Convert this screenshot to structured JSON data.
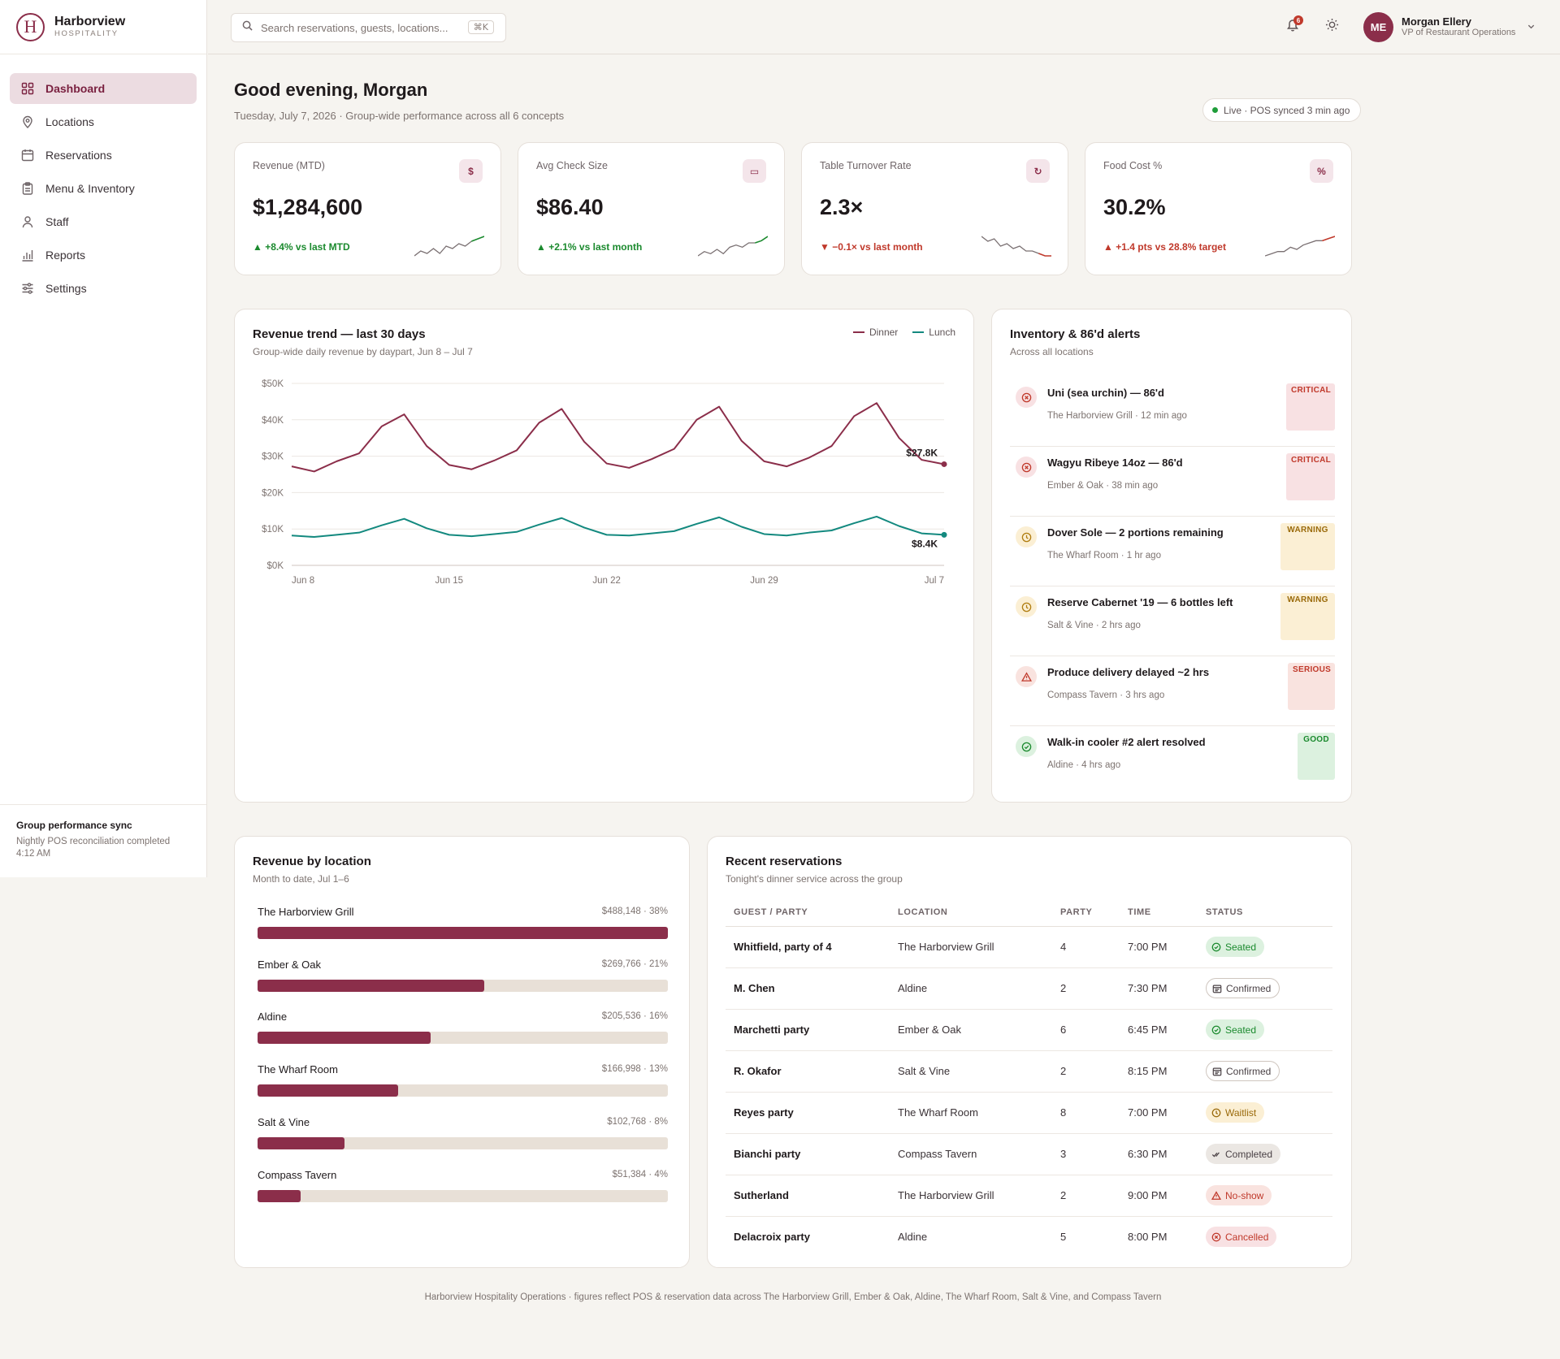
{
  "brand": {
    "logo_letter": "H",
    "name": "Harborview",
    "sub": "HOSPITALITY"
  },
  "nav": [
    {
      "label": "Dashboard",
      "icon": "grid-icon",
      "active": true
    },
    {
      "label": "Locations",
      "icon": "map-pin-icon"
    },
    {
      "label": "Reservations",
      "icon": "calendar-icon"
    },
    {
      "label": "Menu & Inventory",
      "icon": "clipboard-icon"
    },
    {
      "label": "Staff",
      "icon": "user-icon"
    },
    {
      "label": "Reports",
      "icon": "bar-chart-icon"
    },
    {
      "label": "Settings",
      "icon": "sliders-icon"
    }
  ],
  "sync": {
    "title": "Group performance sync",
    "text": "Nightly POS reconciliation completed 4:12 AM"
  },
  "search": {
    "placeholder": "Search reservations, guests, locations...",
    "shortcut": "⌘K"
  },
  "notifications": {
    "count": "6"
  },
  "user": {
    "initials": "ME",
    "name": "Morgan Ellery",
    "role": "VP of Restaurant Operations"
  },
  "header": {
    "greeting": "Good evening, Morgan",
    "subtitle": "Tuesday, July 7, 2026 · Group-wide performance across all 6 concepts",
    "live": "Live · POS synced 3 min ago"
  },
  "colors": {
    "accent": "#8b2e4a",
    "lunch": "#13897f",
    "up": "#1b8a2e",
    "down": "#c0392b"
  },
  "kpis": [
    {
      "label": "Revenue (MTD)",
      "icon": "$",
      "icon_name": "dollar-icon",
      "value": "$1,284,600",
      "arrow": "▲",
      "delta": "+8.4% vs last MTD",
      "trend": "up",
      "spark": [
        3,
        5,
        4,
        6,
        4,
        7,
        6,
        8,
        7,
        9,
        10,
        11
      ]
    },
    {
      "label": "Avg Check Size",
      "icon": "▭",
      "icon_name": "wallet-icon",
      "value": "$86.40",
      "arrow": "▲",
      "delta": "+2.1% vs last month",
      "trend": "up",
      "spark": [
        3,
        5,
        4,
        6,
        4,
        7,
        8,
        7,
        9,
        9,
        10,
        12
      ]
    },
    {
      "label": "Table Turnover Rate",
      "icon": "↻",
      "icon_name": "refresh-icon",
      "value": "2.3×",
      "arrow": "▼",
      "delta": "−0.1× vs last month",
      "trend": "down",
      "spark": [
        12,
        10,
        11,
        8,
        9,
        7,
        8,
        6,
        6,
        5,
        4,
        4
      ]
    },
    {
      "label": "Food Cost %",
      "icon": "%",
      "icon_name": "percent-icon",
      "value": "30.2%",
      "arrow": "▲",
      "delta": "+1.4 pts vs 28.8% target",
      "trend": "down",
      "spark": [
        3,
        4,
        5,
        5,
        7,
        6,
        8,
        9,
        10,
        10,
        11,
        12
      ]
    }
  ],
  "revenue_trend": {
    "title": "Revenue trend — last 30 days",
    "subtitle": "Group-wide daily revenue by daypart, Jun 8 – Jul 7",
    "legend": [
      "Dinner",
      "Lunch"
    ],
    "dinner_end_label": "$27.8K",
    "lunch_end_label": "$8.4K"
  },
  "chart_data": {
    "type": "line",
    "x": [
      "Jun 8",
      "Jun 9",
      "Jun 10",
      "Jun 11",
      "Jun 12",
      "Jun 13",
      "Jun 14",
      "Jun 15",
      "Jun 16",
      "Jun 17",
      "Jun 18",
      "Jun 19",
      "Jun 20",
      "Jun 21",
      "Jun 22",
      "Jun 23",
      "Jun 24",
      "Jun 25",
      "Jun 26",
      "Jun 27",
      "Jun 28",
      "Jun 29",
      "Jun 30",
      "Jul 1",
      "Jul 2",
      "Jul 3",
      "Jul 4",
      "Jul 5",
      "Jul 6",
      "Jul 7"
    ],
    "xticks": [
      "Jun 8",
      "Jun 15",
      "Jun 22",
      "Jun 29",
      "Jul 7"
    ],
    "yticks": [
      "$0K",
      "$10K",
      "$20K",
      "$30K",
      "$40K",
      "$50K"
    ],
    "ylim": [
      0,
      50
    ],
    "series": [
      {
        "name": "Dinner",
        "values": [
          27.2,
          25.8,
          28.6,
          30.8,
          38.2,
          41.5,
          32.8,
          27.6,
          26.4,
          28.8,
          31.6,
          39.2,
          43.0,
          34.0,
          28.0,
          26.8,
          29.2,
          32.0,
          40.0,
          43.6,
          34.2,
          28.6,
          27.2,
          29.6,
          32.8,
          41.0,
          44.6,
          35.0,
          29.0,
          27.8
        ]
      },
      {
        "name": "Lunch",
        "values": [
          8.2,
          7.8,
          8.4,
          9.0,
          11.0,
          12.8,
          10.2,
          8.4,
          8.0,
          8.6,
          9.2,
          11.2,
          13.0,
          10.4,
          8.4,
          8.2,
          8.8,
          9.4,
          11.4,
          13.2,
          10.6,
          8.6,
          8.2,
          9.0,
          9.6,
          11.6,
          13.4,
          10.8,
          8.8,
          8.4
        ]
      }
    ]
  },
  "alerts": {
    "title": "Inventory & 86'd alerts",
    "subtitle": "Across all locations",
    "items": [
      {
        "title": "Uni (sea urchin) — 86'd",
        "meta": "The Harborview Grill · 12 min ago",
        "badge": "CRITICAL",
        "kind": "critical"
      },
      {
        "title": "Wagyu Ribeye 14oz — 86'd",
        "meta": "Ember & Oak · 38 min ago",
        "badge": "CRITICAL",
        "kind": "critical"
      },
      {
        "title": "Dover Sole — 2 portions remaining",
        "meta": "The Wharf Room · 1 hr ago",
        "badge": "WARNING",
        "kind": "warning"
      },
      {
        "title": "Reserve Cabernet '19 — 6 bottles left",
        "meta": "Salt & Vine · 2 hrs ago",
        "badge": "WARNING",
        "kind": "warning"
      },
      {
        "title": "Produce delivery delayed ~2 hrs",
        "meta": "Compass Tavern · 3 hrs ago",
        "badge": "SERIOUS",
        "kind": "serious"
      },
      {
        "title": "Walk-in cooler #2 alert resolved",
        "meta": "Aldine · 4 hrs ago",
        "badge": "GOOD",
        "kind": "good"
      }
    ]
  },
  "locations": {
    "title": "Revenue by location",
    "subtitle": "Month to date, Jul 1–6",
    "items": [
      {
        "name": "The Harborview Grill",
        "value": "$488,148 · 38%",
        "share": 1.0
      },
      {
        "name": "Ember & Oak",
        "value": "$269,766 · 21%",
        "share": 0.553
      },
      {
        "name": "Aldine",
        "value": "$205,536 · 16%",
        "share": 0.421
      },
      {
        "name": "The Wharf Room",
        "value": "$166,998 · 13%",
        "share": 0.342
      },
      {
        "name": "Salt & Vine",
        "value": "$102,768 · 8%",
        "share": 0.211
      },
      {
        "name": "Compass Tavern",
        "value": "$51,384 · 4%",
        "share": 0.105
      }
    ]
  },
  "reservations": {
    "title": "Recent reservations",
    "subtitle": "Tonight's dinner service across the group",
    "columns": [
      "GUEST / PARTY",
      "LOCATION",
      "PARTY",
      "TIME",
      "STATUS"
    ],
    "rows": [
      {
        "guest": "Whitfield, party of 4",
        "location": "The Harborview Grill",
        "party": "4",
        "time": "7:00 PM",
        "status": "Seated",
        "kind": "seated"
      },
      {
        "guest": "M. Chen",
        "location": "Aldine",
        "party": "2",
        "time": "7:30 PM",
        "status": "Confirmed",
        "kind": "confirmed"
      },
      {
        "guest": "Marchetti party",
        "location": "Ember & Oak",
        "party": "6",
        "time": "6:45 PM",
        "status": "Seated",
        "kind": "seated"
      },
      {
        "guest": "R. Okafor",
        "location": "Salt & Vine",
        "party": "2",
        "time": "8:15 PM",
        "status": "Confirmed",
        "kind": "confirmed"
      },
      {
        "guest": "Reyes party",
        "location": "The Wharf Room",
        "party": "8",
        "time": "7:00 PM",
        "status": "Waitlist",
        "kind": "waitlist"
      },
      {
        "guest": "Bianchi party",
        "location": "Compass Tavern",
        "party": "3",
        "time": "6:30 PM",
        "status": "Completed",
        "kind": "completed"
      },
      {
        "guest": "Sutherland",
        "location": "The Harborview Grill",
        "party": "2",
        "time": "9:00 PM",
        "status": "No-show",
        "kind": "noshow"
      },
      {
        "guest": "Delacroix party",
        "location": "Aldine",
        "party": "5",
        "time": "8:00 PM",
        "status": "Cancelled",
        "kind": "cancelled"
      }
    ]
  },
  "footer": "Harborview Hospitality Operations · figures reflect POS & reservation data across The Harborview Grill, Ember & Oak, Aldine, The Wharf Room, Salt & Vine, and Compass Tavern"
}
